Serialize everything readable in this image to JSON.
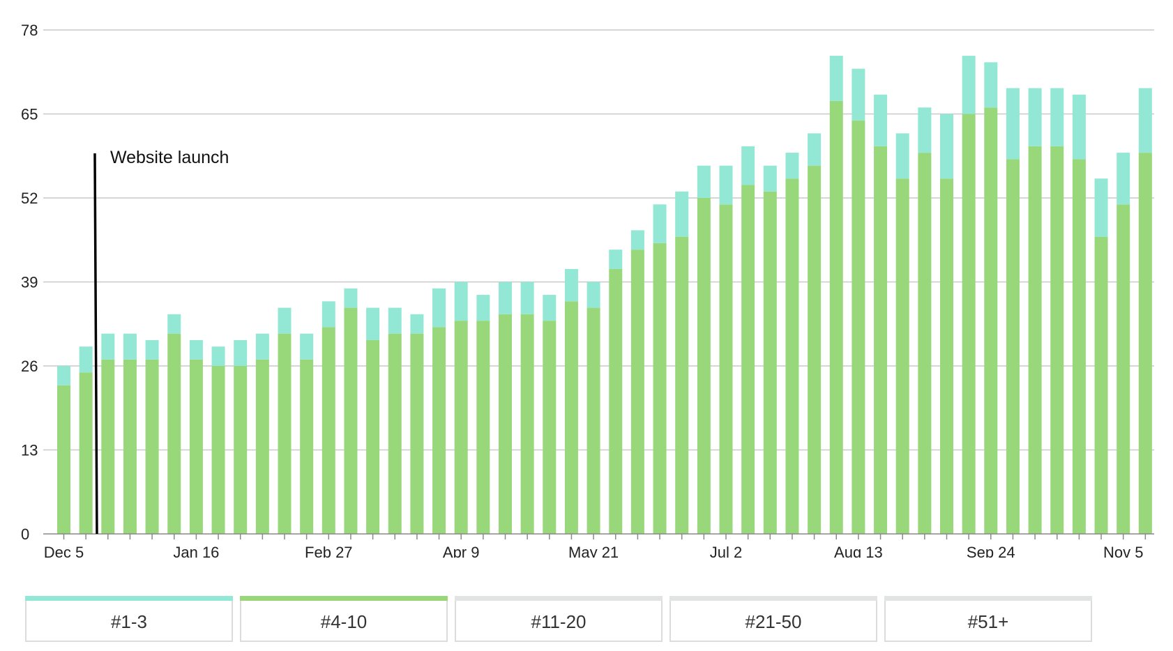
{
  "chart_data": {
    "type": "bar",
    "stacked": true,
    "y_ticks": [
      0,
      13,
      26,
      39,
      52,
      65,
      78
    ],
    "ylim": [
      0,
      78
    ],
    "x_tick_labels": [
      "Dec 5",
      "Jan 16",
      "Feb 27",
      "Apr 9",
      "May 21",
      "Jul 2",
      "Aug 13",
      "Sep 24",
      "Nov 5"
    ],
    "x_tick_positions": [
      0,
      6,
      12,
      18,
      24,
      30,
      36,
      42,
      48
    ],
    "grid": true,
    "annotation": {
      "text": "Website launch",
      "after_bar_index": 1
    },
    "series": [
      {
        "name": "#4-10",
        "color": "#98d87b",
        "values": [
          23,
          25,
          27,
          27,
          27,
          31,
          27,
          26,
          26,
          27,
          31,
          27,
          32,
          35,
          30,
          31,
          31,
          32,
          33,
          33,
          34,
          34,
          33,
          36,
          35,
          41,
          44,
          45,
          46,
          52,
          51,
          54,
          53,
          55,
          57,
          67,
          64,
          60,
          55,
          59,
          55,
          65,
          66,
          58,
          60,
          60,
          58,
          46,
          51,
          59
        ]
      },
      {
        "name": "#1-3",
        "color": "#93e8d5",
        "values": [
          3,
          4,
          4,
          4,
          3,
          3,
          3,
          3,
          4,
          4,
          4,
          4,
          4,
          3,
          5,
          4,
          3,
          6,
          6,
          4,
          5,
          5,
          4,
          5,
          4,
          3,
          3,
          6,
          7,
          5,
          6,
          6,
          4,
          4,
          5,
          7,
          8,
          8,
          7,
          7,
          10,
          9,
          7,
          11,
          9,
          9,
          10,
          9,
          8,
          10
        ]
      }
    ]
  },
  "legend": {
    "items": [
      {
        "label": "#1-3",
        "color": "#93e8d5"
      },
      {
        "label": "#4-10",
        "color": "#98d87b"
      },
      {
        "label": "#11-20",
        "color": "#e2e4e3"
      },
      {
        "label": "#21-50",
        "color": "#e2e4e3"
      },
      {
        "label": "#51+",
        "color": "#e2e4e3"
      }
    ]
  }
}
